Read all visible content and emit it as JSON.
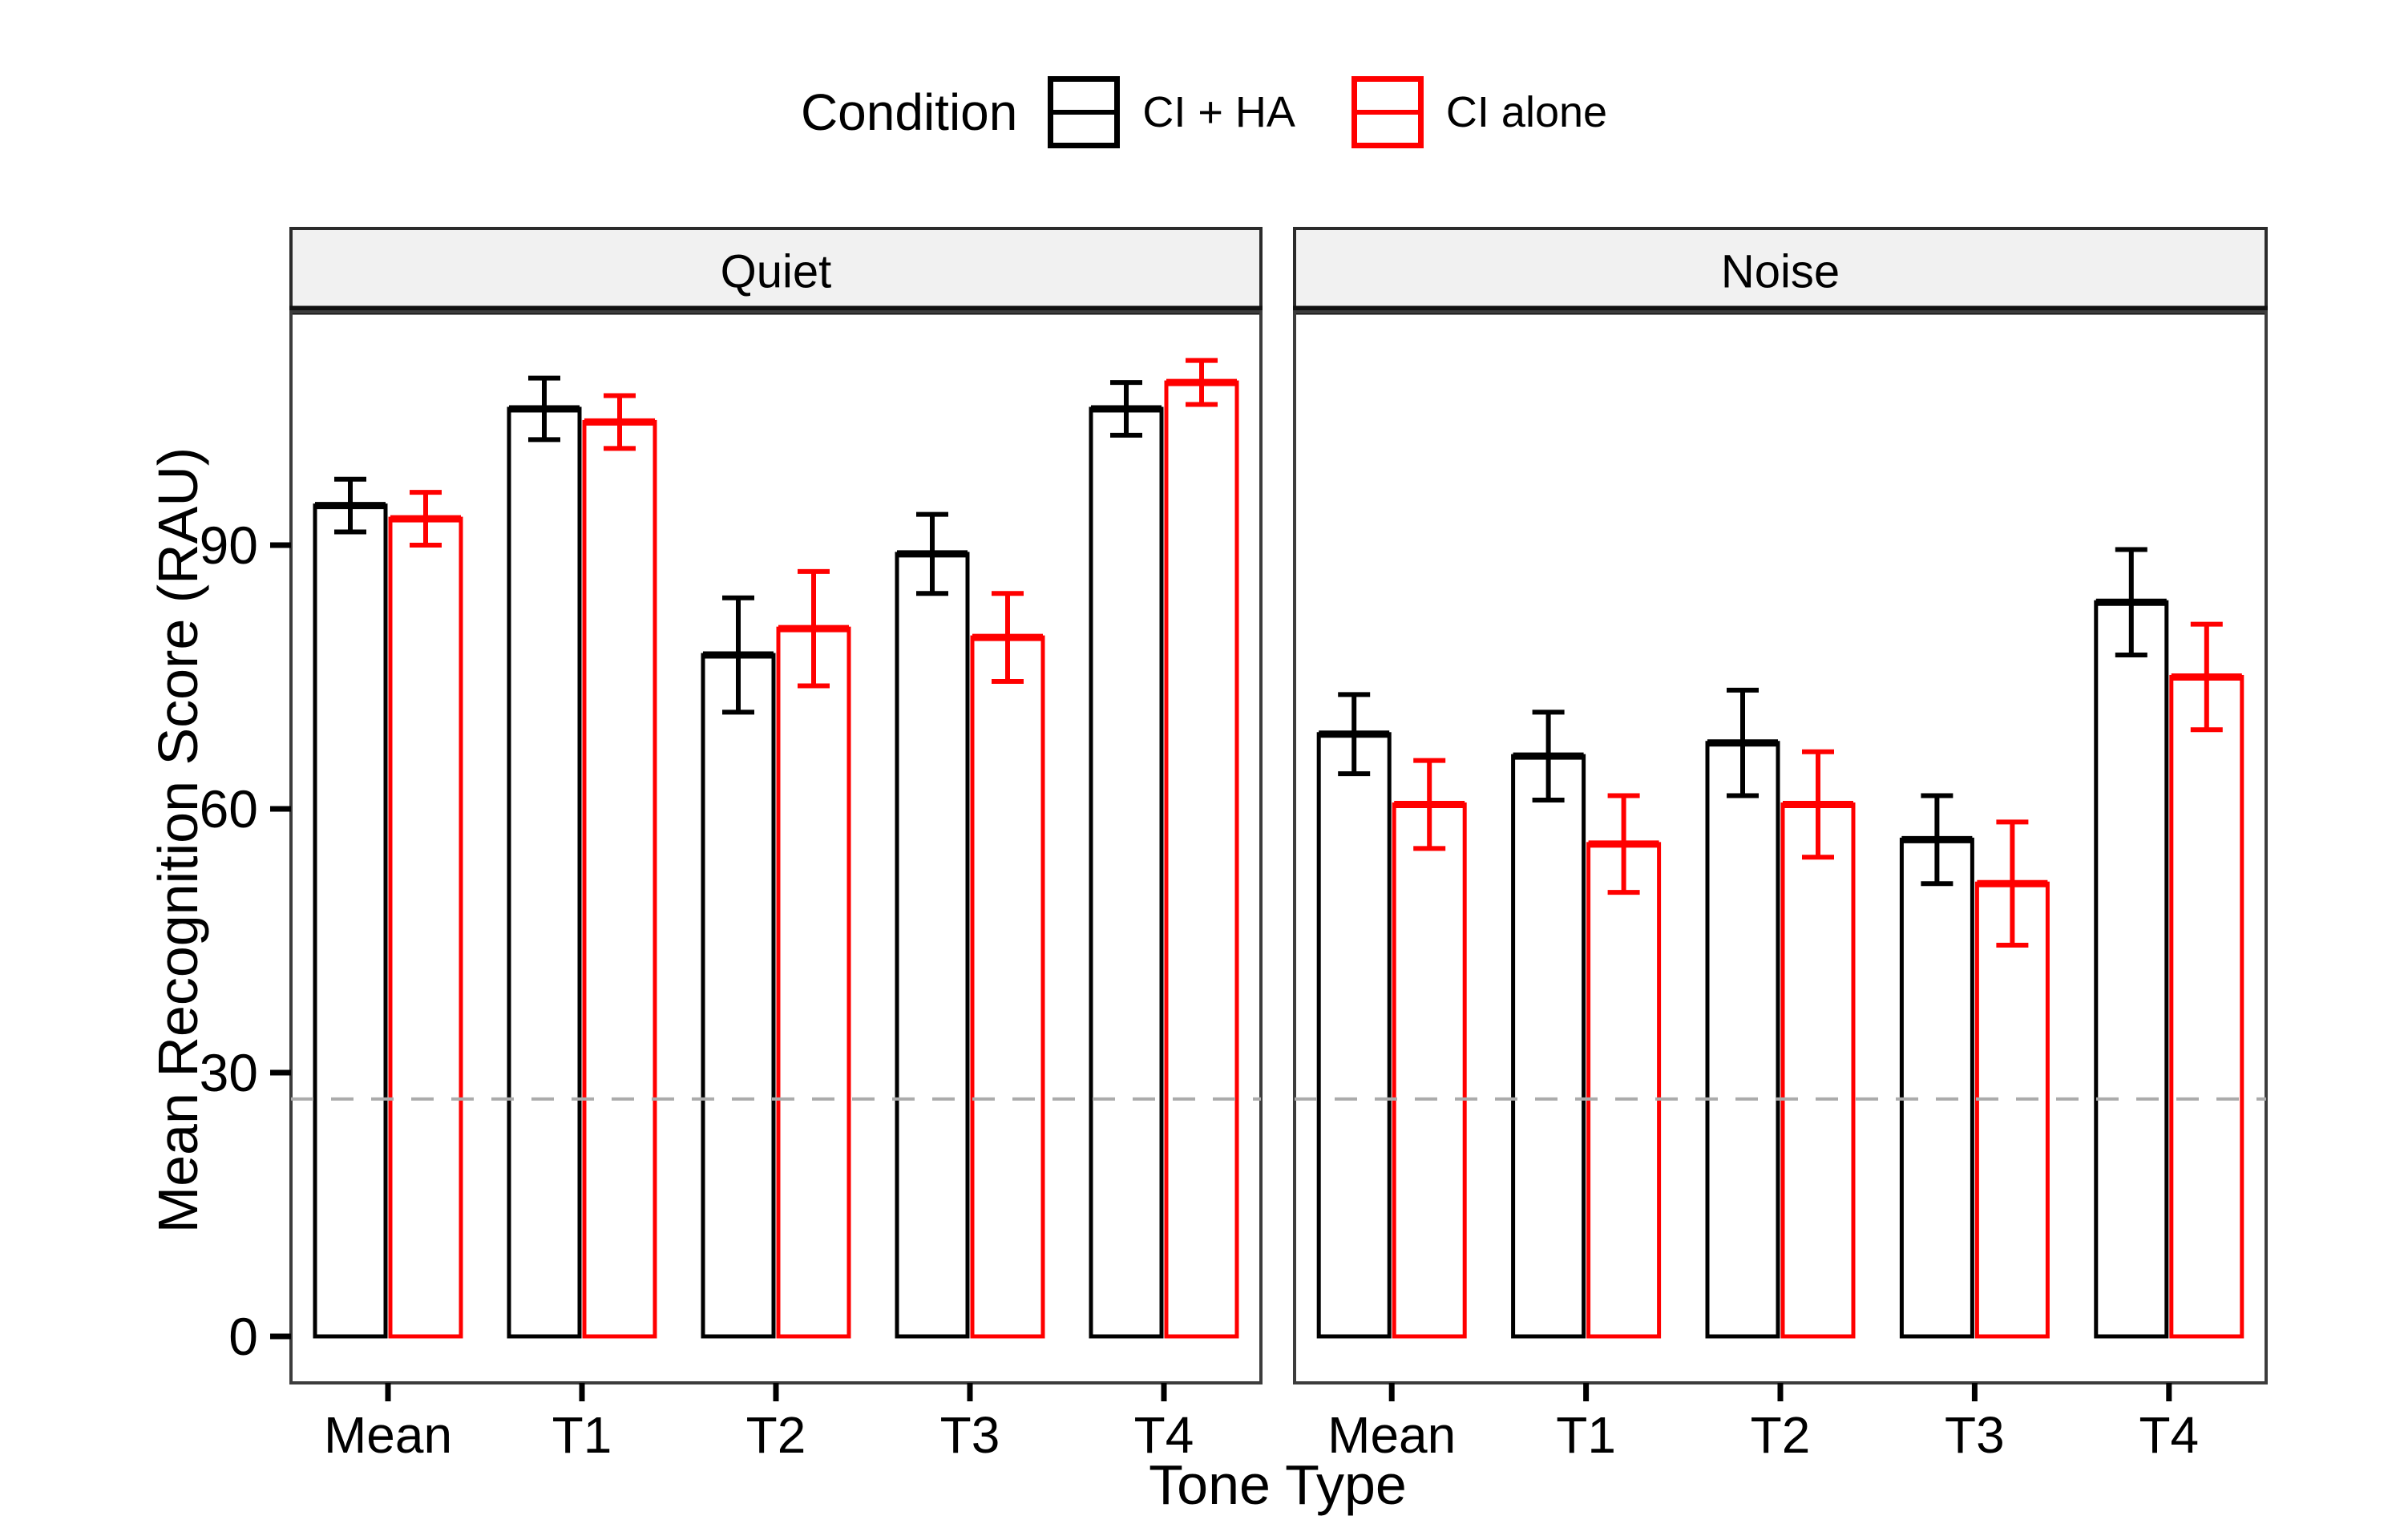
{
  "chart_data": {
    "type": "bar",
    "title": "",
    "legend": {
      "title": "Condition",
      "position": "top",
      "entries": [
        {
          "label": "CI + HA",
          "color": "#000000"
        },
        {
          "label": "CI alone",
          "color": "#FF0000"
        }
      ]
    },
    "xlabel": "Tone Type",
    "ylabel": "Mean Recognition Score (RAU)",
    "categories": [
      "Mean",
      "T1",
      "T2",
      "T3",
      "T4"
    ],
    "yticks": [
      0,
      30,
      60,
      90
    ],
    "ylim": [
      -5.3,
      116.5
    ],
    "grid": false,
    "bar_fill": "#ffffff",
    "reference_line": {
      "value": 27,
      "style": "dashed",
      "color": "#ABABAB"
    },
    "facet_strip_fill": "#F1F1F1",
    "facets": [
      {
        "label": "Quiet",
        "series": [
          {
            "name": "CI + HA",
            "color": "#000000",
            "values": [
              94.5,
              105.5,
              77.5,
              89,
              105.5
            ],
            "errors": [
              3,
              3.5,
              6.5,
              4.5,
              3
            ]
          },
          {
            "name": "CI alone",
            "color": "#FF0000",
            "values": [
              93,
              104,
              80.5,
              79.5,
              108.5
            ],
            "errors": [
              3,
              3,
              6.5,
              5,
              2.5
            ]
          }
        ]
      },
      {
        "label": "Noise",
        "series": [
          {
            "name": "CI + HA",
            "color": "#000000",
            "values": [
              68.5,
              66,
              67.5,
              56.5,
              83.5
            ],
            "errors": [
              4.5,
              5,
              6,
              5,
              6
            ]
          },
          {
            "name": "CI alone",
            "color": "#FF0000",
            "values": [
              60.5,
              56,
              60.5,
              51.5,
              75
            ],
            "errors": [
              5,
              5.5,
              6,
              7,
              6
            ]
          }
        ]
      }
    ]
  }
}
